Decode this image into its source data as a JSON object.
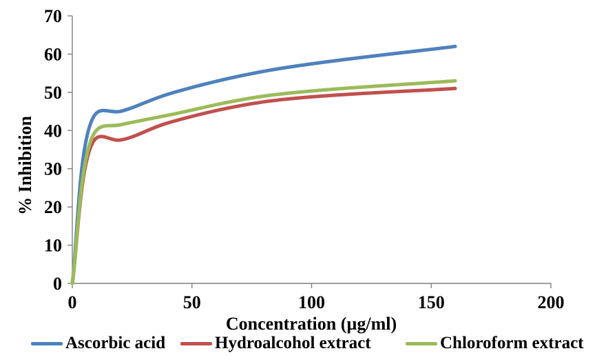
{
  "chart_data": {
    "type": "line",
    "title": "",
    "xlabel": "Concentration (µg/ml)",
    "ylabel": "% Inhibition",
    "x": [
      0,
      10,
      20,
      40,
      80,
      160
    ],
    "series": [
      {
        "name": "Ascorbic acid",
        "color": "#4F81BD",
        "values": [
          0,
          44.5,
          45,
          49.5,
          55.5,
          62
        ]
      },
      {
        "name": "Hydroalcohol extract",
        "color": "#C0504D",
        "values": [
          0,
          38,
          37.5,
          42,
          47.5,
          51
        ]
      },
      {
        "name": "Chloroform extract",
        "color": "#9BBB59",
        "values": [
          0,
          40,
          41.5,
          44,
          49,
          53
        ]
      }
    ],
    "xlim": [
      0,
      200
    ],
    "ylim": [
      0,
      70
    ],
    "x_ticks": [
      "0",
      "50",
      "100",
      "150",
      "200"
    ],
    "y_ticks": [
      "0",
      "10",
      "20",
      "30",
      "40",
      "50",
      "60",
      "70"
    ],
    "grid": false,
    "legend_position": "bottom",
    "smoothed": true
  },
  "style": {
    "axis_color": "#7F7F7F",
    "text_color": "#000000",
    "background": "#FFFFFF",
    "line_width": 5
  }
}
